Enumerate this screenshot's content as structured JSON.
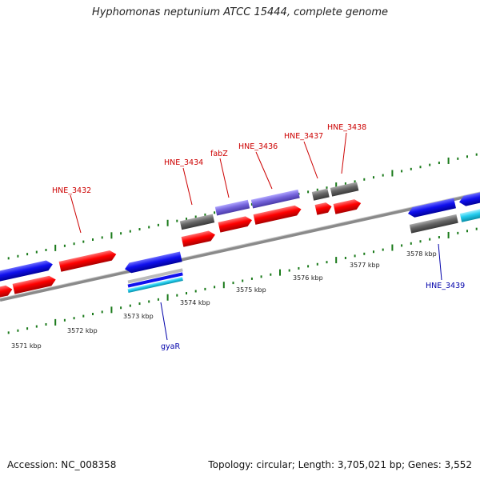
{
  "title": "Hyphomonas neptunium ATCC 15444, complete genome",
  "footer": {
    "accession": "Accession: NC_008358",
    "summary": "Topology: circular; Length: 3,705,021 bp; Genes: 3,552"
  },
  "colors": {
    "backbone": "#8a8a8a",
    "tick": "#1a7a1a",
    "cds": "#ff0000",
    "gene_forward": "#1010ee",
    "gene_reverse": "#1010ee",
    "pseudo_or_other": "#666666",
    "rna_purple": "#7766dd",
    "cyan": "#22ccee",
    "label_forward": "#cc0000",
    "label_reverse": "#0000aa"
  },
  "kbp_ticks": [
    "3571 kbp",
    "3572 kbp",
    "3573 kbp",
    "3574 kbp",
    "3575 kbp",
    "3576 kbp",
    "3577 kbp",
    "3578 kbp"
  ],
  "gene_labels_forward": [
    "HNE_3432",
    "HNE_3434",
    "fabZ",
    "HNE_3436",
    "HNE_3437",
    "HNE_3438"
  ],
  "gene_labels_reverse": [
    "gyaR",
    "HNE_3439"
  ]
}
